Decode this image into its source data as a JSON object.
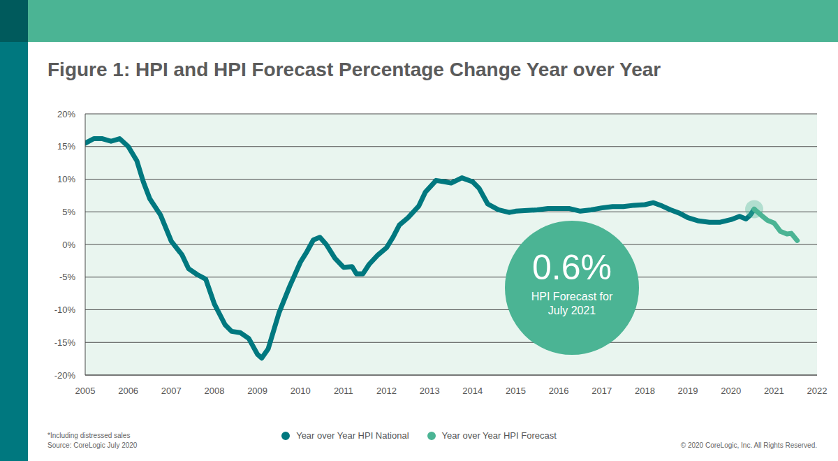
{
  "chart_data": {
    "type": "line",
    "title": "Figure 1: HPI and HPI Forecast Percentage Change Year over Year",
    "series": [
      {
        "name": "Year over Year HPI National",
        "color": "#00787f",
        "x": [
          2005.0,
          2005.2,
          2005.4,
          2005.6,
          2005.8,
          2006.0,
          2006.2,
          2006.35,
          2006.5,
          2006.75,
          2007.0,
          2007.25,
          2007.4,
          2007.6,
          2007.8,
          2008.0,
          2008.25,
          2008.4,
          2008.6,
          2008.8,
          2009.0,
          2009.1,
          2009.25,
          2009.5,
          2009.75,
          2010.0,
          2010.15,
          2010.3,
          2010.45,
          2010.6,
          2010.8,
          2011.0,
          2011.2,
          2011.3,
          2011.45,
          2011.6,
          2011.8,
          2012.0,
          2012.15,
          2012.3,
          2012.5,
          2012.75,
          2012.9,
          2013.15,
          2013.35,
          2013.5,
          2013.75,
          2014.0,
          2014.15,
          2014.35,
          2014.6,
          2014.85,
          2015.0,
          2015.5,
          2015.75,
          2016.0,
          2016.25,
          2016.5,
          2016.75,
          2017.0,
          2017.25,
          2017.5,
          2017.75,
          2018.0,
          2018.2,
          2018.4,
          2018.6,
          2018.8,
          2019.0,
          2019.25,
          2019.5,
          2019.75,
          2020.0,
          2020.2,
          2020.35,
          2020.45,
          2020.54
        ],
        "values": [
          15.5,
          16.2,
          16.2,
          15.8,
          16.2,
          15.0,
          12.8,
          9.6,
          7.0,
          4.5,
          0.5,
          -1.6,
          -3.7,
          -4.6,
          -5.3,
          -9.1,
          -12.3,
          -13.3,
          -13.5,
          -14.4,
          -16.8,
          -17.4,
          -16,
          -10.5,
          -6.4,
          -2.7,
          -1.1,
          0.7,
          1.1,
          0,
          -2.1,
          -3.5,
          -3.4,
          -4.5,
          -4.5,
          -3.0,
          -1.6,
          -0.5,
          1.1,
          3.0,
          4.1,
          5.9,
          8.0,
          9.8,
          9.6,
          9.4,
          10.2,
          9.6,
          8.6,
          6.2,
          5.3,
          4.9,
          5.1,
          5.3,
          5.5,
          5.5,
          5.5,
          5.1,
          5.3,
          5.6,
          5.8,
          5.8,
          6.0,
          6.1,
          6.4,
          5.9,
          5.3,
          4.8,
          4.1,
          3.6,
          3.4,
          3.4,
          3.8,
          4.3,
          3.9,
          4.5,
          5.4
        ]
      },
      {
        "name": "Year over Year HPI Forecast",
        "color": "#4bb494",
        "x": [
          2020.54,
          2020.7,
          2020.85,
          2021.0,
          2021.15,
          2021.3,
          2021.4,
          2021.54
        ],
        "values": [
          5.4,
          4.5,
          3.7,
          3.3,
          2.0,
          1.6,
          1.7,
          0.6
        ]
      }
    ],
    "xlim": [
      2005,
      2022
    ],
    "xticks": [
      2005,
      2006,
      2007,
      2008,
      2009,
      2010,
      2011,
      2012,
      2013,
      2014,
      2015,
      2016,
      2017,
      2018,
      2019,
      2020,
      2021,
      2022
    ],
    "ylim": [
      -20,
      20
    ],
    "yticks": [
      {
        "value": -20,
        "label": "-20%"
      },
      {
        "value": -15,
        "label": "-15%"
      },
      {
        "value": -10,
        "label": "-10%"
      },
      {
        "value": -5,
        "label": "-5%"
      },
      {
        "value": 0,
        "label": "0%"
      },
      {
        "value": 5,
        "label": "5%"
      },
      {
        "value": 10,
        "label": "10%"
      },
      {
        "value": 15,
        "label": "15%"
      },
      {
        "value": 20,
        "label": "20%"
      }
    ],
    "grid": true,
    "legend": "bottom",
    "annotation": {
      "text": "0.6%",
      "subtext": "HPI Forecast for July 2021"
    },
    "notes": [
      "*Including distressed sales",
      "Source: CoreLogic July 2020"
    ],
    "copyright": "© 2020 CoreLogic, Inc. All Rights Reserved."
  }
}
